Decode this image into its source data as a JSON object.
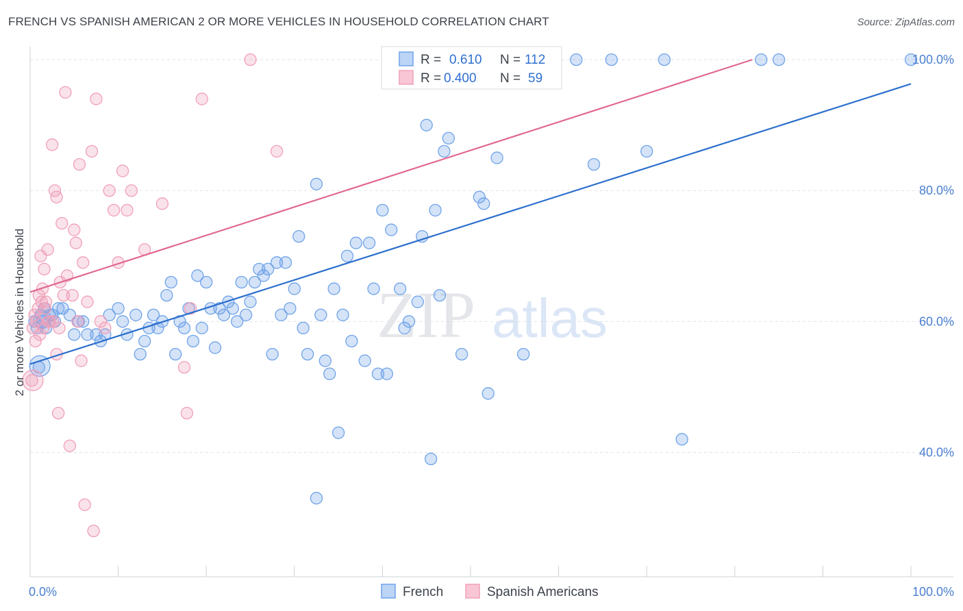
{
  "header": {
    "title": "FRENCH VS SPANISH AMERICAN 2 OR MORE VEHICLES IN HOUSEHOLD CORRELATION CHART",
    "source": "Source: ZipAtlas.com"
  },
  "watermark": {
    "zip": "ZIP",
    "atlas": "atlas"
  },
  "chart_data": {
    "type": "scatter",
    "title": "FRENCH VS SPANISH AMERICAN 2 OR MORE VEHICLES IN HOUSEHOLD CORRELATION CHART",
    "xlabel": "",
    "ylabel": "2 or more Vehicles in Household",
    "xlim": [
      0,
      100
    ],
    "ylim": [
      21,
      102
    ],
    "x_tick_labels": [
      {
        "value": 0,
        "label": "0.0%"
      },
      {
        "value": 100,
        "label": "100.0%"
      }
    ],
    "y_tick_labels": [
      {
        "value": 40,
        "label": "40.0%"
      },
      {
        "value": 60,
        "label": "60.0%"
      },
      {
        "value": 80,
        "label": "80.0%"
      },
      {
        "value": 100,
        "label": "100.0%"
      }
    ],
    "grid": true,
    "legend_position": "top-center",
    "stats_legend": [
      {
        "r_label": "R =",
        "r_value": "0.610",
        "n_label": "N =",
        "n_value": "112"
      },
      {
        "r_label": "R =",
        "r_value": "0.400",
        "n_label": "N =",
        "n_value": "59"
      }
    ],
    "series": [
      {
        "name": "French",
        "color": "#6fa3e8",
        "line_color": "#2b6fcc",
        "trend": {
          "x": [
            0,
            100
          ],
          "y": [
            53.5,
            96.3
          ]
        },
        "points": [
          [
            0.5,
            60
          ],
          [
            0.8,
            59
          ],
          [
            1,
            53
          ],
          [
            1.2,
            61
          ],
          [
            1.4,
            60
          ],
          [
            1.6,
            62
          ],
          [
            1.8,
            59
          ],
          [
            2.2,
            61
          ],
          [
            2.5,
            61
          ],
          [
            2.8,
            60
          ],
          [
            3.2,
            62
          ],
          [
            3.7,
            62
          ],
          [
            4.5,
            61
          ],
          [
            5,
            58
          ],
          [
            5.5,
            60
          ],
          [
            6,
            60
          ],
          [
            6.5,
            58
          ],
          [
            7.5,
            58
          ],
          [
            8,
            57
          ],
          [
            8.5,
            58
          ],
          [
            9,
            61
          ],
          [
            10,
            62
          ],
          [
            10.5,
            60
          ],
          [
            11,
            58
          ],
          [
            12,
            61
          ],
          [
            12.5,
            55
          ],
          [
            13,
            57
          ],
          [
            13.5,
            59
          ],
          [
            14,
            61
          ],
          [
            14.5,
            59
          ],
          [
            15,
            60
          ],
          [
            15.5,
            64
          ],
          [
            16,
            66
          ],
          [
            16.5,
            55
          ],
          [
            17,
            60
          ],
          [
            17.5,
            59
          ],
          [
            18,
            62
          ],
          [
            18.5,
            57
          ],
          [
            19,
            67
          ],
          [
            19.5,
            59
          ],
          [
            20,
            66
          ],
          [
            20.5,
            62
          ],
          [
            21,
            56
          ],
          [
            21.5,
            62
          ],
          [
            22,
            61
          ],
          [
            22.5,
            63
          ],
          [
            23,
            62
          ],
          [
            23.5,
            60
          ],
          [
            24,
            66
          ],
          [
            24.5,
            61
          ],
          [
            25,
            63
          ],
          [
            25.5,
            66
          ],
          [
            26,
            68
          ],
          [
            26.5,
            67
          ],
          [
            27,
            68
          ],
          [
            27.5,
            55
          ],
          [
            28,
            69
          ],
          [
            28.5,
            61
          ],
          [
            29,
            69
          ],
          [
            29.5,
            62
          ],
          [
            30,
            65
          ],
          [
            30.5,
            73
          ],
          [
            31,
            59
          ],
          [
            31.5,
            55
          ],
          [
            32.5,
            81
          ],
          [
            33,
            61
          ],
          [
            33.5,
            54
          ],
          [
            34,
            52
          ],
          [
            34.5,
            65
          ],
          [
            35,
            43
          ],
          [
            35.5,
            61
          ],
          [
            36,
            70
          ],
          [
            36.5,
            57
          ],
          [
            37,
            72
          ],
          [
            38,
            54
          ],
          [
            38.5,
            72
          ],
          [
            39,
            65
          ],
          [
            39.5,
            52
          ],
          [
            40,
            77
          ],
          [
            40.5,
            52
          ],
          [
            41,
            74
          ],
          [
            42,
            65
          ],
          [
            42.5,
            59
          ],
          [
            43,
            60
          ],
          [
            44,
            63
          ],
          [
            44.5,
            73
          ],
          [
            45,
            90
          ],
          [
            45.5,
            39
          ],
          [
            46,
            77
          ],
          [
            46.5,
            64
          ],
          [
            47,
            86
          ],
          [
            47.5,
            88
          ],
          [
            48,
            100
          ],
          [
            49,
            55
          ],
          [
            50,
            100
          ],
          [
            51,
            79
          ],
          [
            51.5,
            78
          ],
          [
            52,
            49
          ],
          [
            53,
            85
          ],
          [
            55,
            100
          ],
          [
            56,
            55
          ],
          [
            58,
            100
          ],
          [
            62,
            100
          ],
          [
            64,
            84
          ],
          [
            66,
            100
          ],
          [
            70,
            86
          ],
          [
            72,
            100
          ],
          [
            74,
            42
          ],
          [
            83,
            100
          ],
          [
            85,
            100
          ],
          [
            100,
            100
          ],
          [
            32.5,
            33
          ]
        ]
      },
      {
        "name": "Spanish Americans",
        "color": "#f0a0b8",
        "line_color": "#e06890",
        "trend": {
          "x": [
            0,
            82
          ],
          "y": [
            64.5,
            100
          ]
        },
        "points": [
          [
            0.2,
            51
          ],
          [
            0.5,
            61
          ],
          [
            0.7,
            60
          ],
          [
            1,
            64
          ],
          [
            1.2,
            70
          ],
          [
            1.4,
            65
          ],
          [
            1.6,
            68
          ],
          [
            1.8,
            63
          ],
          [
            2,
            71
          ],
          [
            2.2,
            60
          ],
          [
            2.5,
            87
          ],
          [
            2.8,
            80
          ],
          [
            3,
            79
          ],
          [
            3,
            55
          ],
          [
            3.2,
            46
          ],
          [
            3.4,
            66
          ],
          [
            3.6,
            75
          ],
          [
            3.8,
            64
          ],
          [
            4,
            95
          ],
          [
            4.2,
            67
          ],
          [
            4.5,
            41
          ],
          [
            4.8,
            64
          ],
          [
            5,
            74
          ],
          [
            5.2,
            72
          ],
          [
            5.4,
            60
          ],
          [
            5.6,
            84
          ],
          [
            5.8,
            54
          ],
          [
            6,
            69
          ],
          [
            6.2,
            32
          ],
          [
            6.5,
            63
          ],
          [
            7,
            86
          ],
          [
            7.2,
            28
          ],
          [
            7.5,
            94
          ],
          [
            8,
            60
          ],
          [
            8.5,
            59
          ],
          [
            9,
            80
          ],
          [
            9.5,
            77
          ],
          [
            10,
            69
          ],
          [
            10.5,
            83
          ],
          [
            11,
            77
          ],
          [
            11.5,
            80
          ],
          [
            13,
            71
          ],
          [
            15,
            78
          ],
          [
            17.5,
            53
          ],
          [
            17.8,
            46
          ],
          [
            18.2,
            62
          ],
          [
            19.5,
            94
          ],
          [
            25,
            100
          ],
          [
            28,
            86
          ],
          [
            0.3,
            59
          ],
          [
            0.6,
            57
          ],
          [
            0.9,
            62
          ],
          [
            1.1,
            58
          ],
          [
            1.3,
            63
          ],
          [
            1.5,
            59
          ],
          [
            1.7,
            62
          ],
          [
            2.1,
            60
          ],
          [
            2.6,
            60
          ],
          [
            3.3,
            59
          ]
        ]
      }
    ]
  },
  "bottom_legend": [
    {
      "label": "French",
      "color": "#bcd4f6",
      "border": "#6fa3e8"
    },
    {
      "label": "Spanish Americans",
      "color": "#f9c6d5",
      "border": "#f0a0b8"
    }
  ]
}
